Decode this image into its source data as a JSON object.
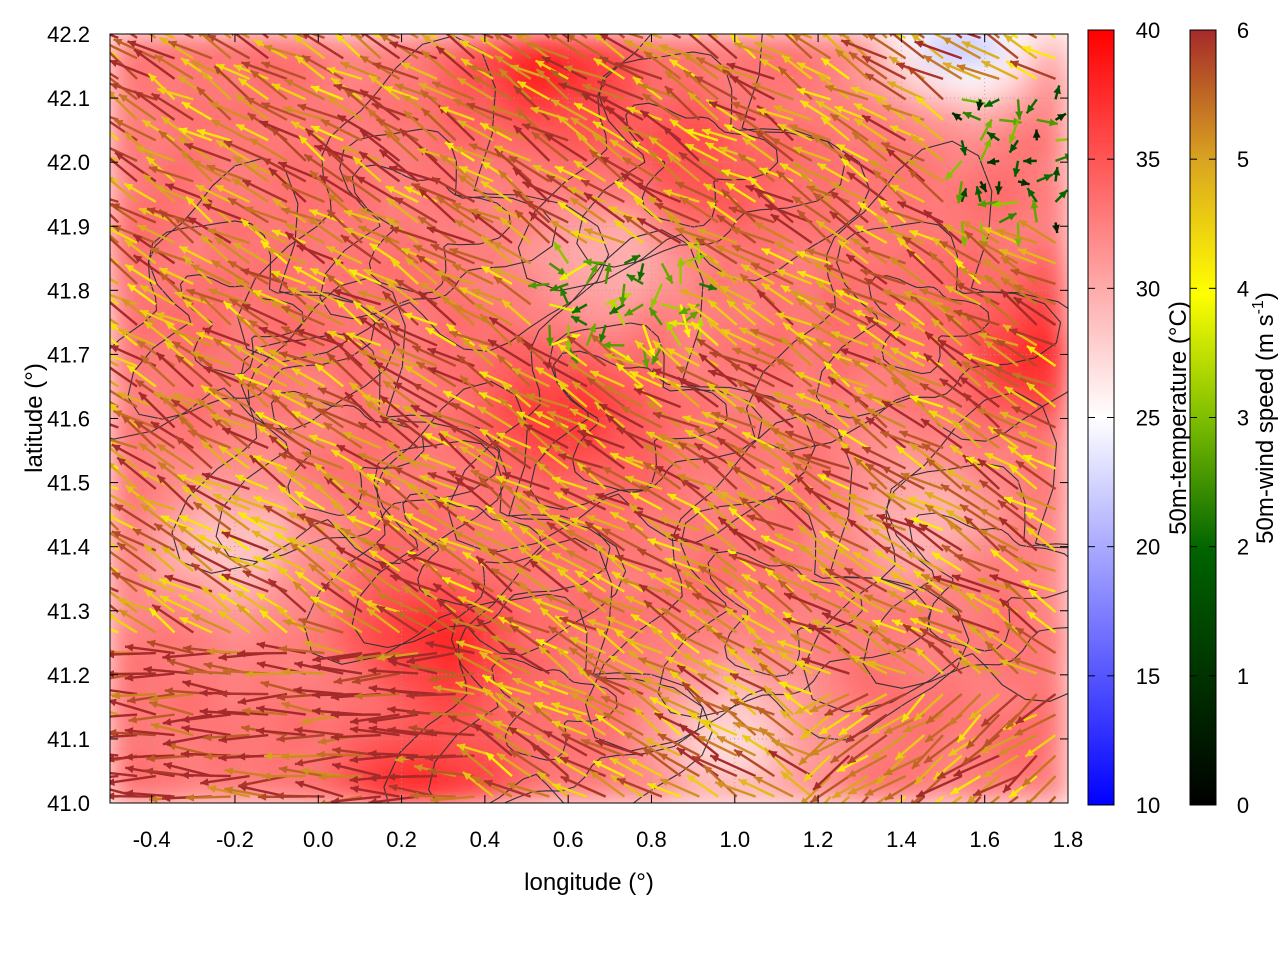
{
  "chart_data": {
    "type": "heatmap",
    "xlabel": "longitude (°)",
    "ylabel": "latitude (°)",
    "xlim": [
      -0.5,
      1.8
    ],
    "ylim": [
      41.0,
      42.2
    ],
    "xticks": [
      "-0.4",
      "-0.2",
      "0.0",
      "0.2",
      "0.4",
      "0.6",
      "0.8",
      "1.0",
      "1.2",
      "1.4",
      "1.6",
      "1.8"
    ],
    "yticks": [
      "41.0",
      "41.1",
      "41.2",
      "41.3",
      "41.4",
      "41.5",
      "41.6",
      "41.7",
      "41.8",
      "41.9",
      "42.0",
      "42.1",
      "42.2"
    ],
    "grid": true,
    "temperature_colorbar": {
      "label": "50m-temperature (°C)",
      "range": [
        10,
        40
      ],
      "ticks": [
        "10",
        "15",
        "20",
        "25",
        "30",
        "35",
        "40"
      ],
      "colors": [
        "#0000ff",
        "#ffffff",
        "#ff0000"
      ]
    },
    "wind_colorbar": {
      "label_main": "50m-wind speed (m s",
      "label_sup": "-1",
      "label_end": ")",
      "range": [
        0,
        6
      ],
      "ticks": [
        "0",
        "1",
        "2",
        "3",
        "4",
        "5",
        "6"
      ],
      "colors": [
        "#000000",
        "#006400",
        "#7fbf00",
        "#ffff00",
        "#daa520",
        "#a52a2a"
      ]
    },
    "approx_temperature_field_c": {
      "background": 33,
      "warm_spots": [
        [
          0.6,
          41.6,
          37
        ],
        [
          0.3,
          41.25,
          38
        ],
        [
          0.25,
          41.0,
          39
        ],
        [
          0.55,
          42.15,
          38
        ],
        [
          1.75,
          41.7,
          38
        ],
        [
          0.9,
          42.0,
          36
        ]
      ],
      "cool_spots": [
        [
          1.0,
          41.1,
          27
        ],
        [
          1.55,
          42.2,
          20
        ],
        [
          -0.2,
          41.4,
          28
        ],
        [
          0.7,
          41.85,
          29
        ],
        [
          1.45,
          41.45,
          29
        ]
      ]
    },
    "approx_wind_regions": [
      {
        "lon_range": [
          -0.5,
          0.4
        ],
        "lat_range": [
          41.0,
          41.25
        ],
        "direction": "westward",
        "speed_m_s": 6
      },
      {
        "lon_range": [
          1.2,
          1.8
        ],
        "lat_range": [
          41.0,
          41.2
        ],
        "direction": "south-westward",
        "speed_m_s": 5
      },
      {
        "lon_range": [
          0.55,
          0.95
        ],
        "lat_range": [
          41.7,
          41.85
        ],
        "direction": "variable",
        "speed_m_s": 2.5
      },
      {
        "lon_range": [
          1.5,
          1.8
        ],
        "lat_range": [
          41.9,
          42.1
        ],
        "direction": "variable",
        "speed_m_s": 1.5
      },
      {
        "lon_range": [
          -0.5,
          1.8
        ],
        "lat_range": [
          41.0,
          42.2
        ],
        "direction": "north-westward",
        "speed_m_s": 5
      }
    ]
  }
}
